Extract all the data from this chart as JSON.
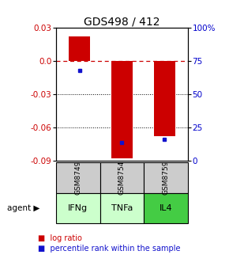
{
  "title": "GDS498 / 412",
  "samples": [
    "GSM8749",
    "GSM8754",
    "GSM8759"
  ],
  "agents": [
    "IFNg",
    "TNFa",
    "IL4"
  ],
  "log_ratios": [
    0.022,
    -0.088,
    -0.068
  ],
  "percentile_ranks": [
    68,
    14,
    16
  ],
  "ylim_left": [
    -0.09,
    0.03
  ],
  "ylim_right": [
    0,
    100
  ],
  "left_ticks": [
    0.03,
    0.0,
    -0.03,
    -0.06,
    -0.09
  ],
  "right_ticks": [
    100,
    75,
    50,
    25,
    0
  ],
  "bar_color": "#cc0000",
  "dot_color": "#1111cc",
  "grid_values": [
    -0.03,
    -0.06
  ],
  "agent_colors": [
    "#ccffcc",
    "#ccffcc",
    "#44cc44"
  ],
  "sample_bg": "#cccccc",
  "title_fontsize": 10,
  "tick_fontsize": 7.5,
  "bar_width": 0.5
}
